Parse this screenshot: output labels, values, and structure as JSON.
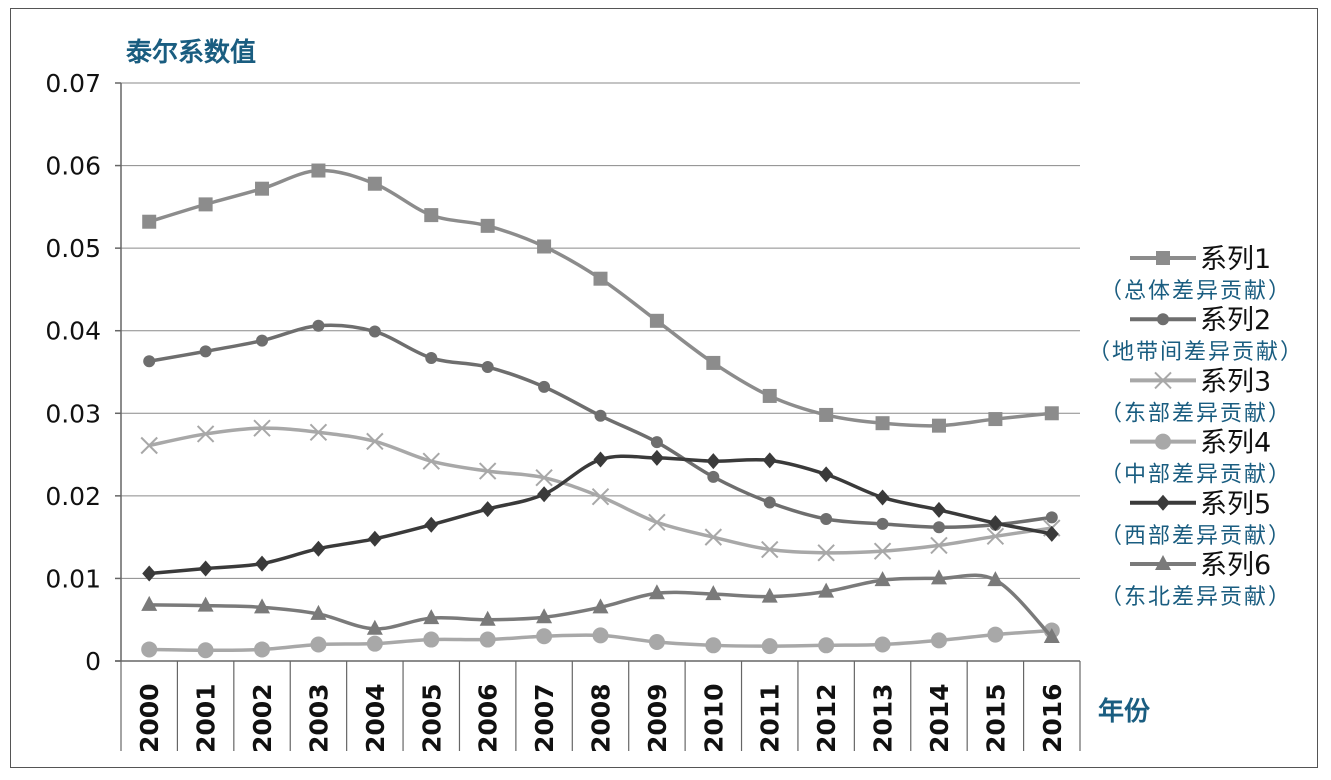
{
  "chart_data": {
    "type": "line",
    "ylabel": "泰尔系数值",
    "xlabel": "年份",
    "ylim": [
      0,
      0.07
    ],
    "yticks": [
      "0",
      "0.01",
      "0.02",
      "0.03",
      "0.04",
      "0.05",
      "0.06",
      "0.07"
    ],
    "grid": "horizontal",
    "legend_position": "right",
    "categories": [
      "2000",
      "2001",
      "2002",
      "2003",
      "2004",
      "2005",
      "2006",
      "2007",
      "2008",
      "2009",
      "2010",
      "2011",
      "2012",
      "2013",
      "2014",
      "2015",
      "2016"
    ],
    "series": [
      {
        "name": "系列1",
        "note": "（总体差异贡献）",
        "marker": "square",
        "color": "#8c8c8c",
        "values": [
          0.0532,
          0.0553,
          0.0572,
          0.0594,
          0.0578,
          0.054,
          0.0527,
          0.0502,
          0.0463,
          0.0412,
          0.0361,
          0.0321,
          0.0298,
          0.0288,
          0.0285,
          0.0293,
          0.03
        ]
      },
      {
        "name": "系列2",
        "note": "（地带间差异贡献）",
        "marker": "circle",
        "color": "#6e6e6e",
        "values": [
          0.0363,
          0.0375,
          0.0388,
          0.0406,
          0.0399,
          0.0367,
          0.0356,
          0.0332,
          0.0297,
          0.0265,
          0.0223,
          0.0192,
          0.0172,
          0.0166,
          0.0162,
          0.0165,
          0.0174
        ]
      },
      {
        "name": "系列3",
        "note": "（东部差异贡献）",
        "marker": "x",
        "color": "#a8a8a8",
        "values": [
          0.0261,
          0.0275,
          0.0282,
          0.0277,
          0.0266,
          0.0242,
          0.023,
          0.0222,
          0.0199,
          0.0168,
          0.015,
          0.0135,
          0.0131,
          0.0133,
          0.014,
          0.0151,
          0.0161
        ]
      },
      {
        "name": "系列4",
        "note": "（中部差异贡献）",
        "marker": "circle-large",
        "color": "#a8a8a8",
        "values": [
          0.0014,
          0.0013,
          0.0014,
          0.002,
          0.0021,
          0.0026,
          0.0026,
          0.003,
          0.0031,
          0.0023,
          0.0019,
          0.0018,
          0.0019,
          0.002,
          0.0025,
          0.0032,
          0.0037
        ]
      },
      {
        "name": "系列5",
        "note": "（西部差异贡献）",
        "marker": "diamond",
        "color": "#3a3a3a",
        "values": [
          0.0106,
          0.0112,
          0.0118,
          0.0136,
          0.0148,
          0.0165,
          0.0184,
          0.0202,
          0.0244,
          0.0246,
          0.0242,
          0.0243,
          0.0226,
          0.0198,
          0.0183,
          0.0167,
          0.0154
        ]
      },
      {
        "name": "系列6",
        "note": "（东北差异贡献）",
        "marker": "triangle",
        "color": "#7a7a7a",
        "values": [
          0.0068,
          0.0067,
          0.0065,
          0.0057,
          0.0039,
          0.0052,
          0.005,
          0.0053,
          0.0065,
          0.0082,
          0.0081,
          0.0078,
          0.0084,
          0.0098,
          0.01,
          0.0098,
          0.0029
        ]
      }
    ]
  }
}
